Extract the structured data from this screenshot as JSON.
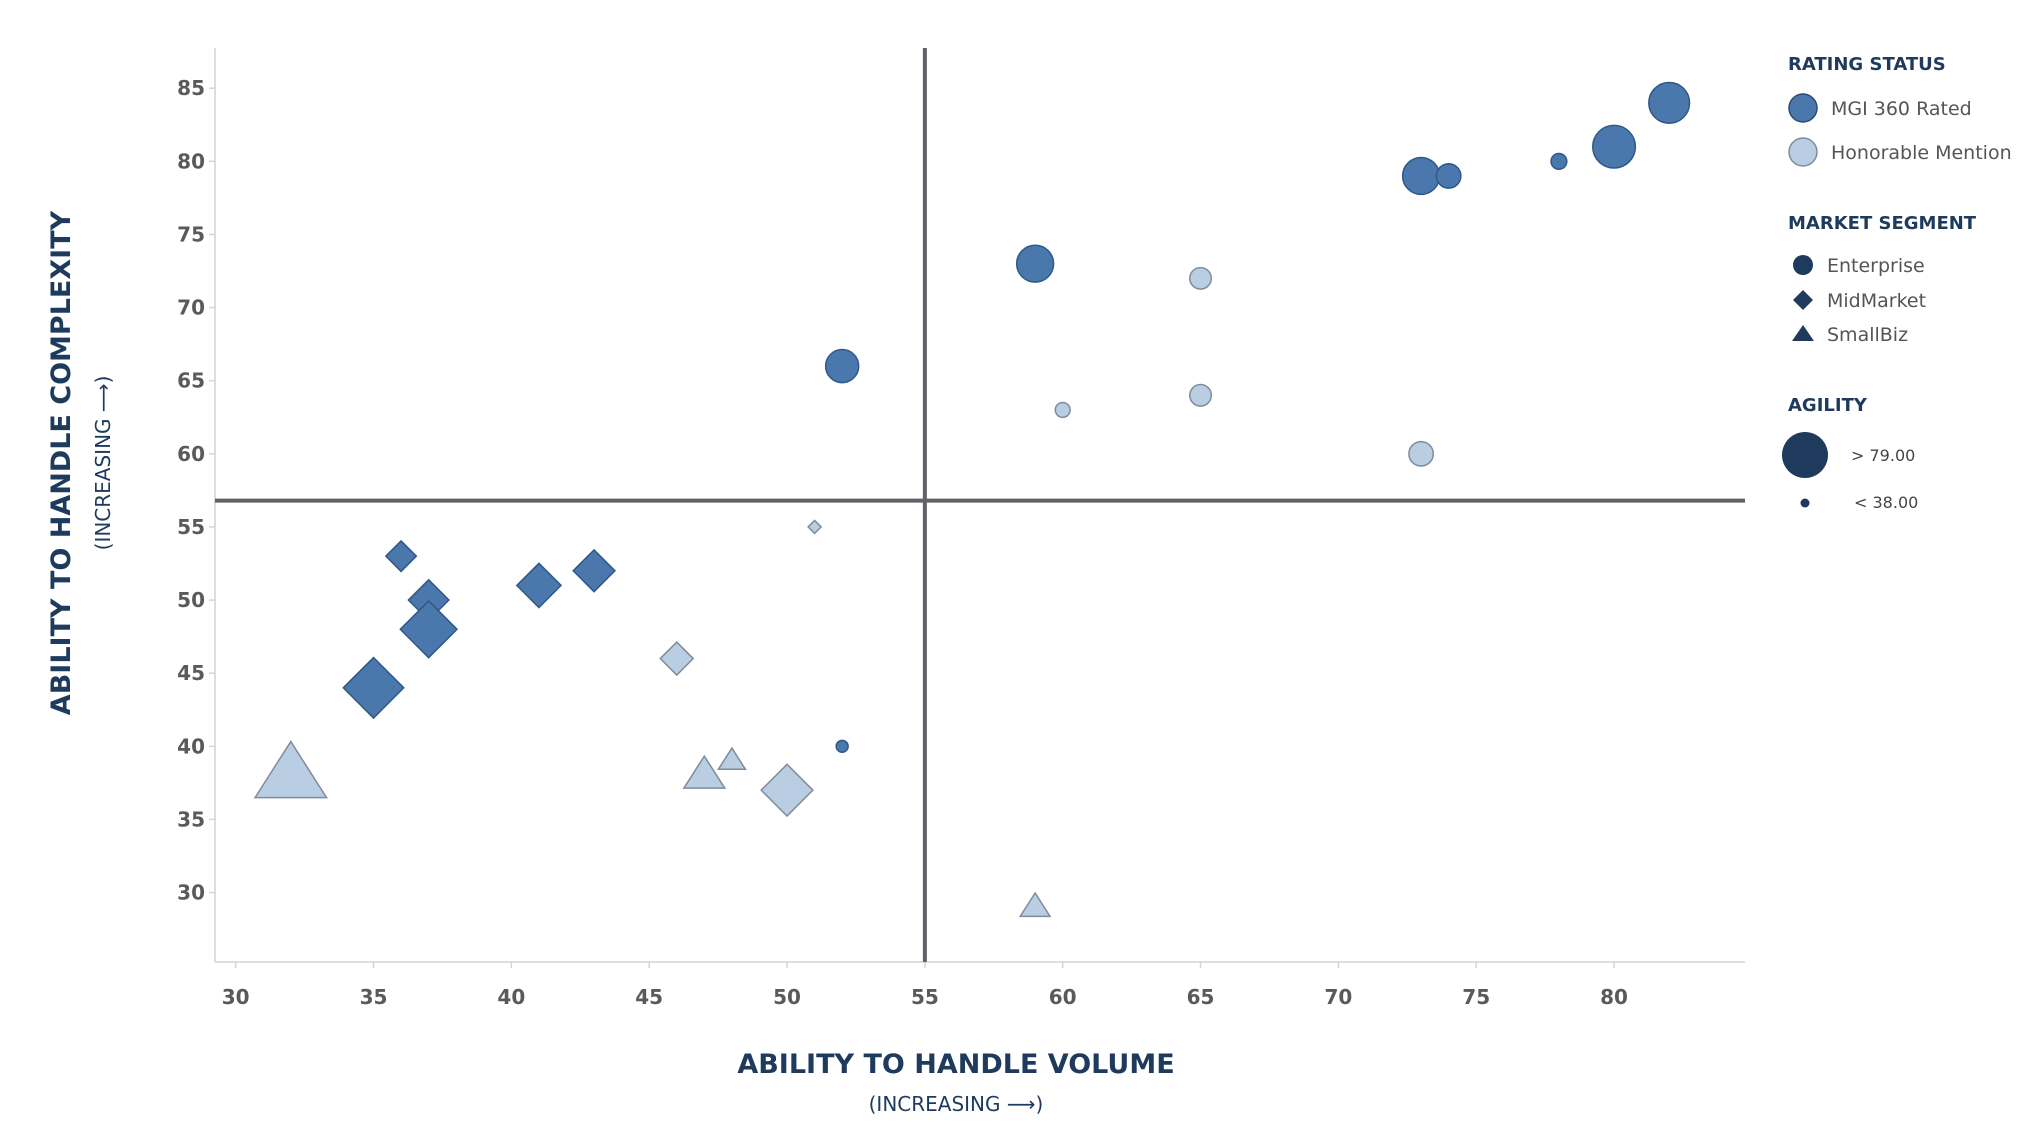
{
  "chart_data": {
    "type": "scatter",
    "title": "",
    "xlabel": "ABILITY TO HANDLE VOLUME",
    "xlabel_sub": "(INCREASING ⟶)",
    "ylabel": "ABILITY TO HANDLE COMPLEXITY",
    "ylabel_sub": "(INCREASING ⟶)",
    "xlim": [
      29.25,
      84.75
    ],
    "ylim": [
      25.25,
      87.75
    ],
    "xticks": [
      30,
      35,
      40,
      45,
      50,
      55,
      60,
      65,
      70,
      75,
      80
    ],
    "yticks": [
      30,
      35,
      40,
      45,
      50,
      55,
      60,
      65,
      70,
      75,
      80,
      85
    ],
    "x_tick_labels": [
      "30",
      "35",
      "40",
      "45",
      "50",
      "55",
      "60",
      "65",
      "70",
      "75",
      "80"
    ],
    "y_tick_labels": [
      "30",
      "35",
      "40",
      "45",
      "50",
      "55",
      "60",
      "65",
      "70",
      "75",
      "80",
      "85"
    ],
    "reference_lines": {
      "x": 55,
      "y": 56.8
    },
    "grid": false,
    "legend_position": "right",
    "colors": {
      "mgi_360_rated": "#4a78ad",
      "honorable_mention": "#b9cde3",
      "legend_dark": "#1e3a5c",
      "axis_title": "#1e3a5c",
      "reference_line": "#616168",
      "tick_label": "#5a5a5a"
    },
    "legend": {
      "rating_status": {
        "title": "RATING STATUS",
        "items": [
          {
            "label": "MGI 360 Rated",
            "status": "rated"
          },
          {
            "label": "Honorable Mention",
            "status": "honorable"
          }
        ]
      },
      "market_segment": {
        "title": "MARKET SEGMENT",
        "items": [
          {
            "label": "Enterprise",
            "shape": "circle"
          },
          {
            "label": "MidMarket",
            "shape": "diamond"
          },
          {
            "label": "SmallBiz",
            "shape": "triangle"
          }
        ]
      },
      "agility": {
        "title": "AGILITY",
        "items": [
          {
            "label": "> 79.00",
            "agility": 79
          },
          {
            "label": "< 38.00",
            "agility": 38
          }
        ]
      }
    },
    "points": [
      {
        "x": 82,
        "y": 84,
        "segment": "Enterprise",
        "status": "rated",
        "agility": 70
      },
      {
        "x": 80,
        "y": 81,
        "segment": "Enterprise",
        "status": "rated",
        "agility": 72
      },
      {
        "x": 78,
        "y": 80,
        "segment": "Enterprise",
        "status": "rated",
        "agility": 44
      },
      {
        "x": 73,
        "y": 79,
        "segment": "Enterprise",
        "status": "rated",
        "agility": 66
      },
      {
        "x": 74,
        "y": 79,
        "segment": "Enterprise",
        "status": "rated",
        "agility": 53
      },
      {
        "x": 59,
        "y": 73,
        "segment": "Enterprise",
        "status": "rated",
        "agility": 66
      },
      {
        "x": 52,
        "y": 66,
        "segment": "Enterprise",
        "status": "rated",
        "agility": 62
      },
      {
        "x": 52,
        "y": 40,
        "segment": "Enterprise",
        "status": "rated",
        "agility": 40
      },
      {
        "x": 65,
        "y": 72,
        "segment": "Enterprise",
        "status": "honorable",
        "agility": 50
      },
      {
        "x": 65,
        "y": 64,
        "segment": "Enterprise",
        "status": "honorable",
        "agility": 50
      },
      {
        "x": 60,
        "y": 63,
        "segment": "Enterprise",
        "status": "honorable",
        "agility": 43
      },
      {
        "x": 73,
        "y": 60,
        "segment": "Enterprise",
        "status": "honorable",
        "agility": 53
      },
      {
        "x": 36,
        "y": 53,
        "segment": "MidMarket",
        "status": "rated",
        "agility": 52
      },
      {
        "x": 37,
        "y": 50,
        "segment": "MidMarket",
        "status": "rated",
        "agility": 60
      },
      {
        "x": 37,
        "y": 48,
        "segment": "MidMarket",
        "status": "rated",
        "agility": 73
      },
      {
        "x": 41,
        "y": 51,
        "segment": "MidMarket",
        "status": "rated",
        "agility": 63
      },
      {
        "x": 43,
        "y": 52,
        "segment": "MidMarket",
        "status": "rated",
        "agility": 61
      },
      {
        "x": 35,
        "y": 44,
        "segment": "MidMarket",
        "status": "rated",
        "agility": 76
      },
      {
        "x": 51,
        "y": 55,
        "segment": "MidMarket",
        "status": "honorable",
        "agility": 38
      },
      {
        "x": 46,
        "y": 46,
        "segment": "MidMarket",
        "status": "honorable",
        "agility": 54
      },
      {
        "x": 50,
        "y": 37,
        "segment": "MidMarket",
        "status": "honorable",
        "agility": 69
      },
      {
        "x": 32,
        "y": 38,
        "segment": "SmallBiz",
        "status": "honorable",
        "agility": 79
      },
      {
        "x": 47,
        "y": 38,
        "segment": "SmallBiz",
        "status": "honorable",
        "agility": 57
      },
      {
        "x": 48,
        "y": 39,
        "segment": "SmallBiz",
        "status": "honorable",
        "agility": 47
      },
      {
        "x": 59,
        "y": 29,
        "segment": "SmallBiz",
        "status": "honorable",
        "agility": 49
      }
    ]
  }
}
